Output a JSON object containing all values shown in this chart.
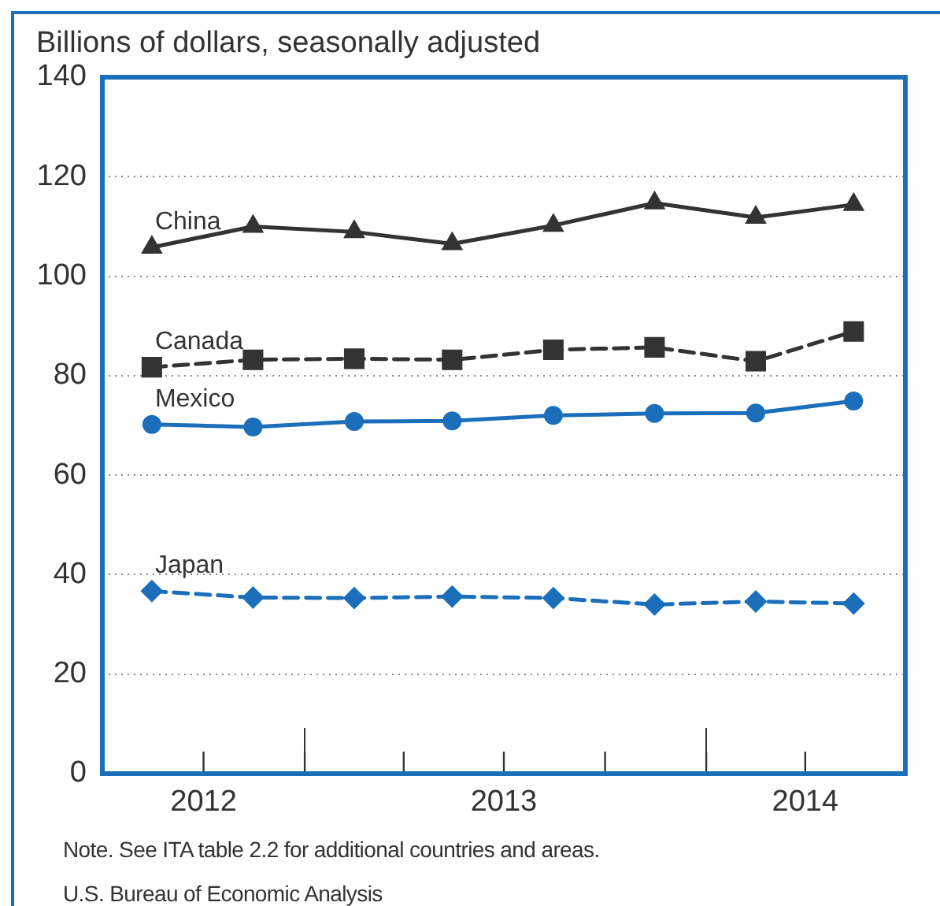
{
  "chart_data": {
    "type": "line",
    "ylabel": "Billions of dollars, seasonally adjusted",
    "x": [
      "2012-08-15",
      "2012-11-15",
      "2013-02-15",
      "2013-05-15",
      "2013-08-15",
      "2013-11-15",
      "2014-02-15",
      "2014-05-15"
    ],
    "xlim": [
      "2012-07-01",
      "2014-07-01"
    ],
    "xticks": [
      {
        "value": "2012-10-01",
        "label": "2012"
      },
      {
        "value": "2013-01-01",
        "label": null
      },
      {
        "value": "2013-04-01",
        "label": null
      },
      {
        "value": "2013-07-01",
        "label": "2013"
      },
      {
        "value": "2013-10-01",
        "label": null
      },
      {
        "value": "2014-01-01",
        "label": null
      },
      {
        "value": "2014-04-01",
        "label": "2014"
      }
    ],
    "ylim": [
      0,
      140
    ],
    "yticks": [
      0,
      20,
      40,
      60,
      80,
      100,
      120,
      140
    ],
    "grid": "y",
    "series": [
      {
        "name": "China",
        "color": "#333333",
        "marker": "triangle",
        "line_style": "solid",
        "values": [
          105.8,
          110.0,
          108.9,
          106.5,
          110.2,
          114.7,
          111.8,
          114.4
        ]
      },
      {
        "name": "Canada",
        "color": "#333333",
        "marker": "square",
        "line_style": "dashed",
        "values": [
          81.7,
          83.2,
          83.4,
          83.2,
          85.2,
          85.7,
          82.9,
          88.9
        ]
      },
      {
        "name": "Mexico",
        "color": "#1b6fba",
        "marker": "circle",
        "line_style": "solid",
        "values": [
          70.2,
          69.7,
          70.8,
          70.9,
          72.0,
          72.4,
          72.5,
          74.9
        ]
      },
      {
        "name": "Japan",
        "color": "#1b6fba",
        "marker": "diamond",
        "line_style": "dashed",
        "values": [
          36.7,
          35.4,
          35.3,
          35.6,
          35.3,
          34.0,
          34.6,
          34.2
        ]
      }
    ],
    "annotations": [
      "Note. See ITA table 2.2 for additional countries and areas.",
      "U.S. Bureau of Economic Analysis"
    ]
  }
}
